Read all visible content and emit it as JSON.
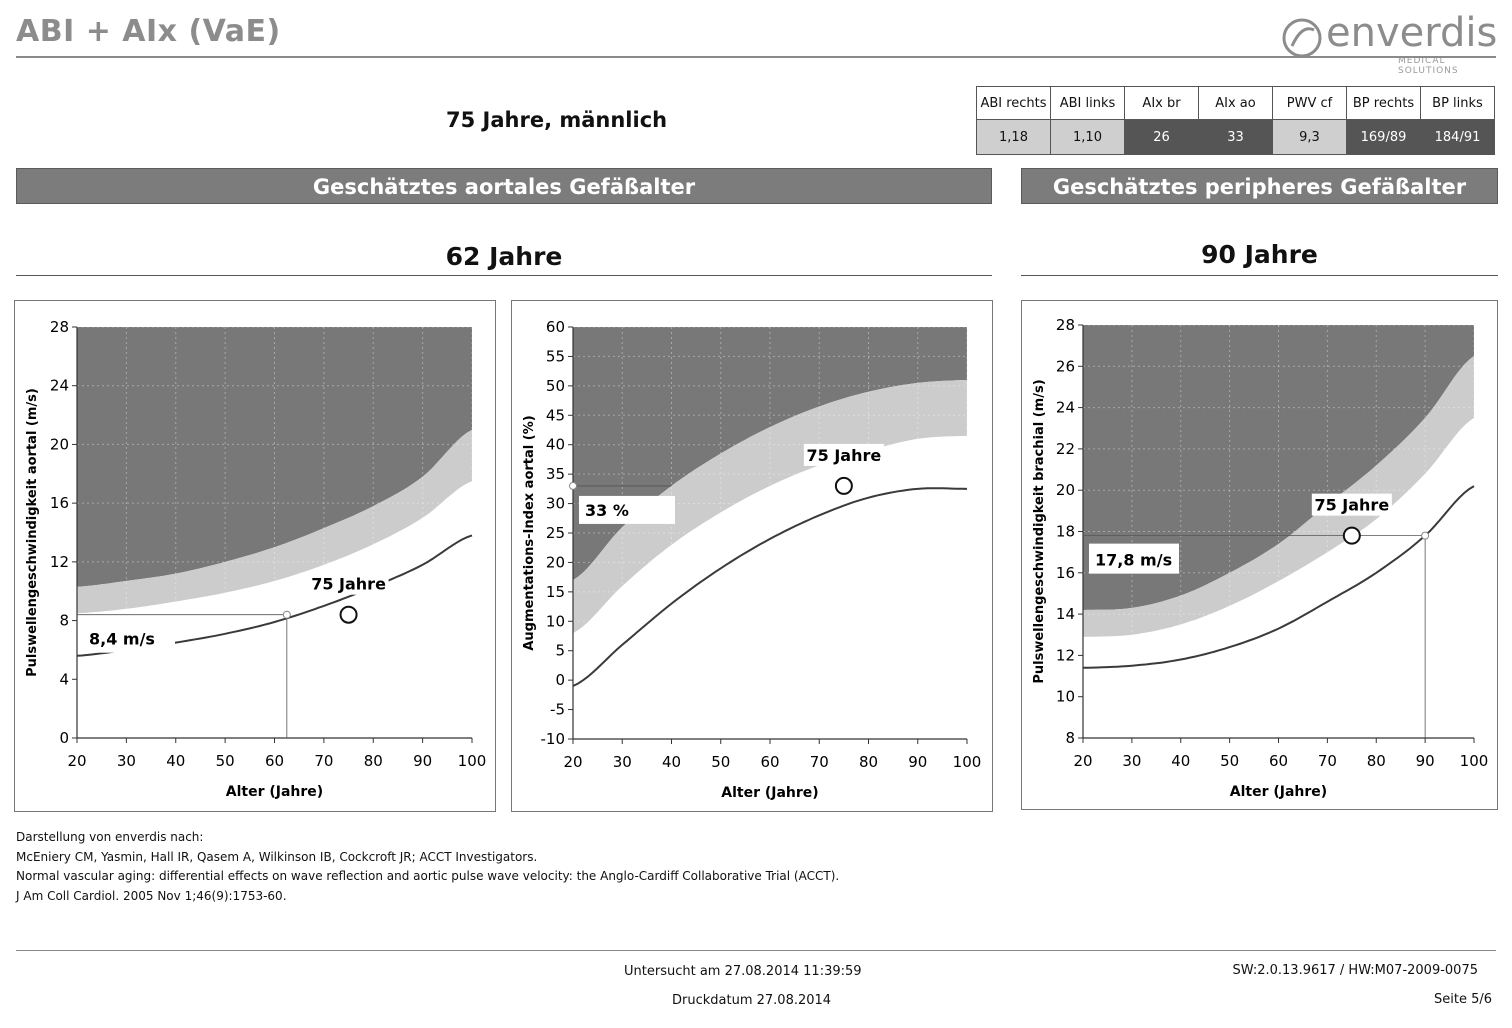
{
  "header": {
    "title": "ABI + AIx (VaE)",
    "logo_text": "enverdis",
    "logo_subtitle": "MEDICAL SOLUTIONS",
    "patient": "75 Jahre, männlich"
  },
  "values_table": {
    "headers": [
      "ABI rechts",
      "ABI links",
      "AIx br",
      "AIx ao",
      "PWV cf",
      "BP rechts",
      "BP links"
    ],
    "values": [
      "1,18",
      "1,10",
      "26",
      "33",
      "9,3",
      "169/89",
      "184/91"
    ],
    "cell_colors": [
      "#cfcfcf",
      "#cfcfcf",
      "#555555",
      "#555555",
      "#cfcfcf",
      "#555555",
      "#555555"
    ]
  },
  "sections": {
    "aortic": {
      "title": "Geschätztes aortales Gefäßalter",
      "age": "62 Jahre"
    },
    "peripheral": {
      "title": "Geschätztes peripheres Gefäßalter",
      "age": "90 Jahre"
    }
  },
  "colors": {
    "dark_zone": "#787878",
    "light_zone": "#cccccc",
    "bar": "#7c7c7c",
    "curve": "#3a3a3a"
  },
  "chart_data": [
    {
      "type": "area",
      "id": "pwv-aortal",
      "xlabel": "Alter (Jahre)",
      "ylabel": "Pulswellengeschwindigkeit aortal (m/s)",
      "xlim": [
        20,
        100
      ],
      "ylim": [
        0,
        28
      ],
      "xticks": [
        20,
        30,
        40,
        50,
        60,
        70,
        80,
        90,
        100
      ],
      "yticks": [
        0,
        4,
        8,
        12,
        16,
        20,
        24,
        28
      ],
      "x": [
        20,
        30,
        40,
        50,
        60,
        70,
        80,
        90,
        100
      ],
      "upper_bound": [
        10.3,
        10.7,
        11.2,
        12.0,
        13.0,
        14.3,
        15.8,
        17.8,
        21.0
      ],
      "middle_bound": [
        8.5,
        8.8,
        9.3,
        9.9,
        10.7,
        11.8,
        13.2,
        15.0,
        17.5
      ],
      "curve": [
        5.6,
        6.0,
        6.5,
        7.1,
        7.9,
        9.0,
        10.3,
        11.8,
        13.8
      ],
      "patient_point": {
        "x": 75,
        "y": 8.4,
        "label": "75 Jahre"
      },
      "vascular_age_point": {
        "x": 62.5,
        "y": 8.4,
        "label": "8,4 m/s"
      }
    },
    {
      "type": "area",
      "id": "aix-aortal",
      "xlabel": "Alter (Jahre)",
      "ylabel": "Augmentations-Index aortal (%)",
      "xlim": [
        20,
        100
      ],
      "ylim": [
        -10,
        60
      ],
      "xticks": [
        20,
        30,
        40,
        50,
        60,
        70,
        80,
        90,
        100
      ],
      "yticks": [
        -10,
        -5,
        0,
        5,
        10,
        15,
        20,
        25,
        30,
        35,
        40,
        45,
        50,
        55,
        60
      ],
      "x": [
        20,
        30,
        40,
        50,
        60,
        70,
        80,
        90,
        100
      ],
      "upper_bound": [
        17,
        26,
        33,
        38.5,
        43,
        46.5,
        49,
        50.5,
        51
      ],
      "middle_bound": [
        8,
        16,
        23,
        28.5,
        33,
        36.5,
        39,
        41,
        41.5
      ],
      "curve": [
        -1,
        6,
        13,
        19,
        24,
        28,
        31,
        32.5,
        32.5
      ],
      "patient_point": {
        "x": 75,
        "y": 33,
        "label": "75 Jahre"
      },
      "vascular_age_point": {
        "x": 20,
        "y": 33,
        "label": "33 %"
      }
    },
    {
      "type": "area",
      "id": "pwv-brachial",
      "xlabel": "Alter (Jahre)",
      "ylabel": "Pulswellengeschwindigkeit brachial (m/s)",
      "xlim": [
        20,
        100
      ],
      "ylim": [
        8,
        28
      ],
      "xticks": [
        20,
        30,
        40,
        50,
        60,
        70,
        80,
        90,
        100
      ],
      "yticks": [
        8,
        10,
        12,
        14,
        16,
        18,
        20,
        22,
        24,
        26,
        28
      ],
      "x": [
        20,
        30,
        40,
        50,
        60,
        70,
        80,
        90,
        100
      ],
      "upper_bound": [
        14.2,
        14.3,
        14.9,
        16.0,
        17.4,
        19.3,
        21.2,
        23.5,
        26.5
      ],
      "middle_bound": [
        12.9,
        13.0,
        13.5,
        14.4,
        15.6,
        17.0,
        18.6,
        20.8,
        23.5
      ],
      "curve": [
        11.4,
        11.5,
        11.8,
        12.4,
        13.3,
        14.6,
        16.0,
        17.8,
        20.2
      ],
      "patient_point": {
        "x": 75,
        "y": 17.8,
        "label": "75 Jahre"
      },
      "vascular_age_point": {
        "x": 90,
        "y": 17.8,
        "label": "17,8 m/s"
      }
    }
  ],
  "references": [
    "Darstellung von enverdis nach:",
    "McEniery CM, Yasmin, Hall IR, Qasem A, Wilkinson IB, Cockcroft JR; ACCT Investigators.",
    "Normal vascular aging: differential effects on wave reflection and aortic pulse wave velocity: the Anglo-Cardiff Collaborative Trial (ACCT).",
    "J Am Coll Cardiol. 2005 Nov 1;46(9):1753-60."
  ],
  "footer": {
    "examined": "Untersucht am 27.08.2014  11:39:59",
    "printed": "Druckdatum 27.08.2014",
    "version": "SW:2.0.13.9617 / HW:M07-2009-0075",
    "page": "Seite 5/6"
  }
}
